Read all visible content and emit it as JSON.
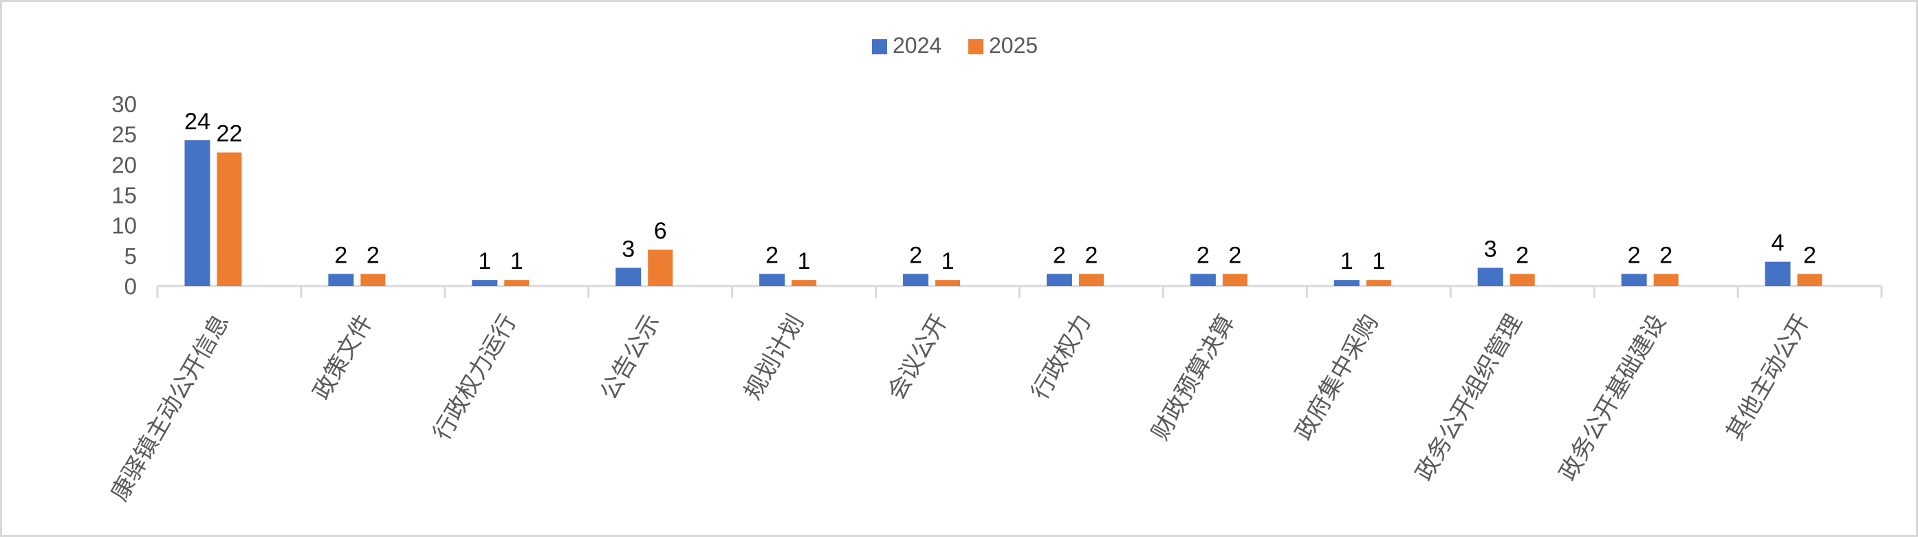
{
  "chart_data": {
    "type": "bar",
    "title": "",
    "xlabel": "",
    "ylabel": "",
    "categories": [
      "康驿镇主动公开信息",
      "政策文件",
      "行政权力运行",
      "公告公示",
      "规划计划",
      "会议公开",
      "行政权力",
      "财政预算决算",
      "政府集中采购",
      "政务公开组织管理",
      "政务公开基础建设",
      "其他主动公开"
    ],
    "series": [
      {
        "name": "2024",
        "color": "#4472C4",
        "values": [
          24,
          2,
          1,
          3,
          2,
          2,
          2,
          2,
          1,
          3,
          2,
          4
        ]
      },
      {
        "name": "2025",
        "color": "#ED7D31",
        "values": [
          22,
          2,
          1,
          6,
          1,
          1,
          2,
          2,
          1,
          2,
          2,
          2
        ]
      }
    ],
    "ylim": [
      0,
      30
    ],
    "yticks": [
      0,
      5,
      10,
      15,
      20,
      25,
      30
    ],
    "grid": false,
    "data_labels": true,
    "legend_position": "top"
  }
}
